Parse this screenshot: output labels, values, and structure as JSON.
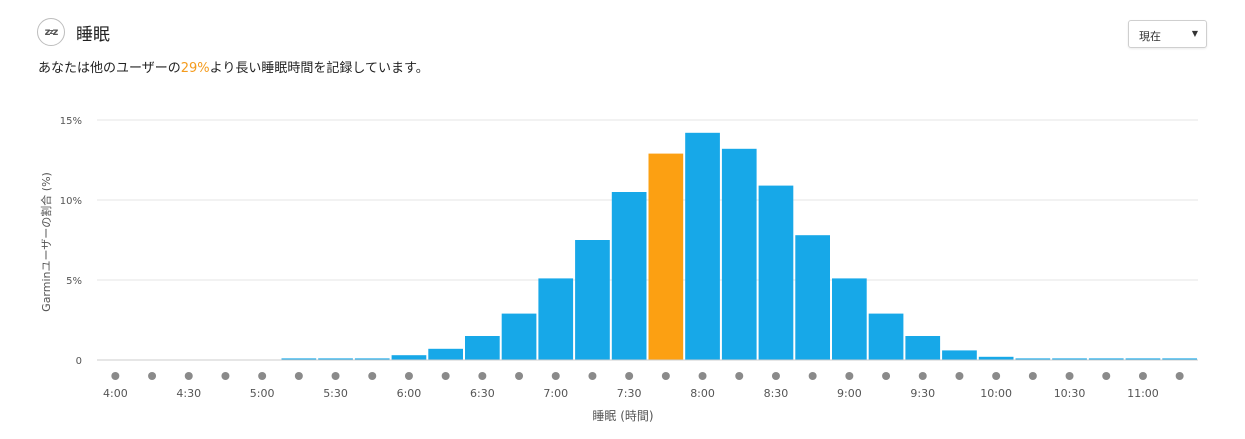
{
  "header": {
    "title": "睡眠",
    "summary_prefix": "あなたは他のユーザーの",
    "summary_percent": "29%",
    "summary_suffix": "より長い睡眠時間を記録しています。"
  },
  "period_select": {
    "value": "現在"
  },
  "colors": {
    "bar": "#17a8e8",
    "highlight": "#fca012",
    "dot": "#8a8a8a",
    "grid": "#e6e6e6"
  },
  "chart_data": {
    "type": "bar",
    "xlabel": "睡眠 (時間)",
    "ylabel": "Garminユーザーの割合 (%)",
    "ylim": [
      0,
      15
    ],
    "y_ticks": [
      {
        "value": 0,
        "label": "0"
      },
      {
        "value": 5,
        "label": "5%"
      },
      {
        "value": 10,
        "label": "10%"
      },
      {
        "value": 15,
        "label": "15%"
      }
    ],
    "categories": [
      "4:00",
      "4:15",
      "4:30",
      "4:45",
      "5:00",
      "5:15",
      "5:30",
      "5:45",
      "6:00",
      "6:15",
      "6:30",
      "6:45",
      "7:00",
      "7:15",
      "7:30",
      "7:45",
      "8:00",
      "8:15",
      "8:30",
      "8:45",
      "9:00",
      "9:15",
      "9:30",
      "9:45",
      "10:00",
      "10:15",
      "10:30",
      "10:45",
      "11:00",
      "11:15"
    ],
    "x_tick_labels": [
      "4:00",
      "4:30",
      "5:00",
      "5:30",
      "6:00",
      "6:30",
      "7:00",
      "7:30",
      "8:00",
      "8:30",
      "9:00",
      "9:30",
      "10:00",
      "10:30",
      "11:00"
    ],
    "values": [
      0,
      0,
      0,
      0,
      0,
      0.1,
      0.1,
      0.1,
      0.3,
      0.7,
      1.5,
      2.9,
      5.1,
      7.5,
      10.5,
      12.9,
      14.2,
      13.2,
      10.9,
      7.8,
      5.1,
      2.9,
      1.5,
      0.6,
      0.2,
      0.1,
      0.1,
      0.1,
      0.1,
      0.1
    ],
    "highlight_category": "7:45"
  }
}
